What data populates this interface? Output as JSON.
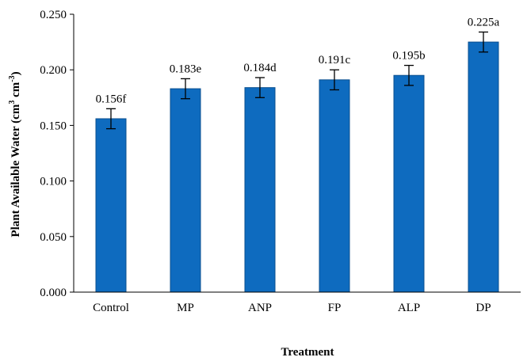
{
  "chart_data": {
    "type": "bar",
    "categories": [
      "Control",
      "MP",
      "ANP",
      "FP",
      "ALP",
      "DP"
    ],
    "values": [
      0.156,
      0.183,
      0.184,
      0.191,
      0.195,
      0.225
    ],
    "error": [
      0.009,
      0.009,
      0.009,
      0.009,
      0.009,
      0.009
    ],
    "data_labels": [
      "0.156f",
      "0.183e",
      "0.184d",
      "0.191c",
      "0.195b",
      "0.225a"
    ],
    "ylim": [
      0,
      0.25
    ],
    "yticks": [
      0,
      0.05,
      0.1,
      0.15,
      0.2,
      0.25
    ],
    "ytick_labels": [
      "0.000",
      "0.050",
      "0.100",
      "0.150",
      "0.200",
      "0.250"
    ],
    "xlabel": "Treatment",
    "ylabel": {
      "prefix": "Plant Available Water (cm",
      "sup1": "3",
      "middle": " cm",
      "sup2": "-3",
      "suffix": ")"
    },
    "grid": false,
    "bar_color": "#0e6bbf",
    "bar_edge_color": "#0a4f8f"
  }
}
